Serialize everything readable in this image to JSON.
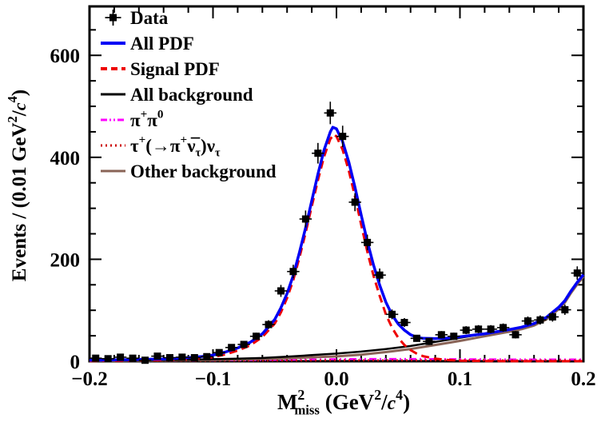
{
  "chart_data": {
    "type": "line",
    "title": "",
    "xlabel_runs": [
      {
        "t": "M"
      },
      {
        "t": "2",
        "s": "sup"
      },
      {
        "t": "miss",
        "s": "sub",
        "dx": -13
      },
      {
        "t": " (GeV"
      },
      {
        "t": "2",
        "s": "sup"
      },
      {
        "t": "/"
      },
      {
        "t": "c",
        "s": "it"
      },
      {
        "t": "4",
        "s": "sup"
      },
      {
        "t": ")"
      }
    ],
    "ylabel_runs": [
      {
        "t": "Events / (0.01 GeV"
      },
      {
        "t": "2",
        "s": "sup"
      },
      {
        "t": "/"
      },
      {
        "t": "c",
        "s": "it"
      },
      {
        "t": "4",
        "s": "sup"
      },
      {
        "t": ")"
      }
    ],
    "xlim": [
      -0.2,
      0.2
    ],
    "ylim": [
      0,
      696
    ],
    "xticks": {
      "major": [
        -0.2,
        -0.1,
        0,
        0.1,
        0.2
      ],
      "labels": [
        "−0.2",
        "−0.1",
        "0.0",
        "0.1",
        "0.2"
      ],
      "minor_step": 0.02
    },
    "yticks": {
      "major": [
        0,
        200,
        400,
        600
      ],
      "labels": [
        "0",
        "200",
        "400",
        "600"
      ],
      "minor_step": 50
    },
    "grid": false,
    "legend_position": "top-left",
    "data_points": {
      "name": "Data",
      "marker": "filled-square",
      "color": "#000000",
      "bin_width": 0.01,
      "x": [
        -0.195,
        -0.185,
        -0.175,
        -0.165,
        -0.155,
        -0.145,
        -0.135,
        -0.125,
        -0.115,
        -0.105,
        -0.095,
        -0.085,
        -0.075,
        -0.065,
        -0.055,
        -0.045,
        -0.035,
        -0.025,
        -0.015,
        -0.005,
        0.005,
        0.015,
        0.025,
        0.035,
        0.045,
        0.055,
        0.065,
        0.075,
        0.085,
        0.095,
        0.105,
        0.115,
        0.125,
        0.135,
        0.145,
        0.155,
        0.165,
        0.175,
        0.185,
        0.195
      ],
      "y": [
        6,
        5,
        8,
        6,
        2,
        10,
        7,
        8,
        7,
        9,
        17,
        27,
        33,
        49,
        72,
        138,
        176,
        279,
        408,
        487,
        441,
        312,
        233,
        169,
        92,
        76,
        45,
        39,
        52,
        49,
        61,
        63,
        63,
        66,
        52,
        79,
        81,
        87,
        101,
        173
      ]
    },
    "series": [
      {
        "key": "pipi0",
        "name": "pi+pi0",
        "color": "#ff00ff",
        "dash": "9 4 2 4 2 4",
        "width": 2.5,
        "points": [
          [
            -0.2,
            1
          ],
          [
            -0.15,
            1.3
          ],
          [
            -0.1,
            1.8
          ],
          [
            -0.05,
            2.8
          ],
          [
            -0.02,
            3.5
          ],
          [
            0,
            4
          ],
          [
            0.03,
            4.5
          ],
          [
            0.06,
            4.5
          ],
          [
            0.1,
            4
          ],
          [
            0.15,
            3.5
          ],
          [
            0.2,
            3.5
          ]
        ]
      },
      {
        "key": "tau",
        "name": "tau background",
        "color": "#cc0000",
        "dash": "2 4",
        "width": 2.5,
        "points": [
          [
            -0.2,
            0.8
          ],
          [
            -0.1,
            1.2
          ],
          [
            0,
            1.8
          ],
          [
            0.1,
            1.8
          ],
          [
            0.2,
            1.5
          ]
        ]
      },
      {
        "key": "other-bkg",
        "name": "Other background",
        "color": "#8a6457",
        "dash": "",
        "width": 3,
        "points": [
          [
            -0.2,
            0.8
          ],
          [
            -0.15,
            1.5
          ],
          [
            -0.1,
            2.5
          ],
          [
            -0.05,
            5
          ],
          [
            0,
            9.5
          ],
          [
            0.02,
            13
          ],
          [
            0.04,
            18
          ],
          [
            0.06,
            24
          ],
          [
            0.08,
            32
          ],
          [
            0.1,
            40
          ],
          [
            0.12,
            49
          ],
          [
            0.14,
            58
          ],
          [
            0.15,
            63
          ],
          [
            0.16,
            70
          ],
          [
            0.17,
            82
          ],
          [
            0.18,
            102
          ],
          [
            0.185,
            115
          ],
          [
            0.19,
            134
          ],
          [
            0.195,
            151
          ],
          [
            0.2,
            166
          ]
        ]
      },
      {
        "key": "all-bkg",
        "name": "All background",
        "color": "#000000",
        "dash": "",
        "width": 2.5,
        "points": [
          [
            -0.2,
            1.5
          ],
          [
            -0.15,
            2.5
          ],
          [
            -0.12,
            3.2
          ],
          [
            -0.1,
            4
          ],
          [
            -0.08,
            5
          ],
          [
            -0.06,
            6.5
          ],
          [
            -0.04,
            9
          ],
          [
            -0.02,
            12
          ],
          [
            0,
            15
          ],
          [
            0.02,
            19
          ],
          [
            0.04,
            24
          ],
          [
            0.06,
            30
          ],
          [
            0.08,
            38
          ],
          [
            0.1,
            46
          ],
          [
            0.12,
            54
          ],
          [
            0.14,
            62
          ],
          [
            0.15,
            67
          ],
          [
            0.16,
            73
          ],
          [
            0.17,
            85
          ],
          [
            0.18,
            105
          ],
          [
            0.185,
            118
          ],
          [
            0.19,
            137
          ],
          [
            0.195,
            154
          ],
          [
            0.2,
            169
          ]
        ]
      },
      {
        "key": "signal-pdf",
        "name": "Signal PDF",
        "color": "#ee0000",
        "dash": "10 6",
        "width": 3,
        "points": [
          [
            -0.2,
            0.5
          ],
          [
            -0.18,
            1
          ],
          [
            -0.16,
            1.6
          ],
          [
            -0.14,
            2.4
          ],
          [
            -0.12,
            3.8
          ],
          [
            -0.11,
            5.3
          ],
          [
            -0.1,
            8
          ],
          [
            -0.09,
            13.5
          ],
          [
            -0.08,
            21
          ],
          [
            -0.07,
            31
          ],
          [
            -0.06,
            47.5
          ],
          [
            -0.05,
            74
          ],
          [
            -0.045,
            96
          ],
          [
            -0.04,
            124
          ],
          [
            -0.035,
            159
          ],
          [
            -0.03,
            203
          ],
          [
            -0.025,
            252
          ],
          [
            -0.02,
            304
          ],
          [
            -0.015,
            355
          ],
          [
            -0.01,
            402
          ],
          [
            -0.005,
            436
          ],
          [
            -0.002,
            445
          ],
          [
            0,
            441
          ],
          [
            0.005,
            415
          ],
          [
            0.01,
            374
          ],
          [
            0.015,
            323
          ],
          [
            0.02,
            268
          ],
          [
            0.025,
            215
          ],
          [
            0.03,
            168
          ],
          [
            0.035,
            128
          ],
          [
            0.04,
            92
          ],
          [
            0.045,
            66
          ],
          [
            0.05,
            46
          ],
          [
            0.055,
            32
          ],
          [
            0.06,
            22
          ],
          [
            0.065,
            15
          ],
          [
            0.07,
            10
          ],
          [
            0.08,
            5
          ],
          [
            0.09,
            2.5
          ],
          [
            0.1,
            1.2
          ],
          [
            0.12,
            0.5
          ],
          [
            0.15,
            0.2
          ],
          [
            0.2,
            0.1
          ]
        ]
      },
      {
        "key": "all-pdf",
        "name": "All PDF",
        "color": "#0000f5",
        "dash": "",
        "width": 3.5,
        "points": [
          [
            -0.2,
            2
          ],
          [
            -0.18,
            2.6
          ],
          [
            -0.16,
            3.4
          ],
          [
            -0.14,
            4.5
          ],
          [
            -0.12,
            7
          ],
          [
            -0.11,
            9
          ],
          [
            -0.1,
            12
          ],
          [
            -0.09,
            18
          ],
          [
            -0.08,
            26
          ],
          [
            -0.07,
            37
          ],
          [
            -0.06,
            54
          ],
          [
            -0.05,
            82
          ],
          [
            -0.045,
            105
          ],
          [
            -0.04,
            133
          ],
          [
            -0.035,
            168
          ],
          [
            -0.03,
            213
          ],
          [
            -0.025,
            262
          ],
          [
            -0.02,
            315
          ],
          [
            -0.015,
            367
          ],
          [
            -0.01,
            415
          ],
          [
            -0.005,
            450
          ],
          [
            -0.003,
            459
          ],
          [
            0,
            456
          ],
          [
            0.005,
            431
          ],
          [
            0.01,
            391
          ],
          [
            0.015,
            341
          ],
          [
            0.02,
            287
          ],
          [
            0.025,
            235
          ],
          [
            0.03,
            189
          ],
          [
            0.035,
            149
          ],
          [
            0.04,
            116
          ],
          [
            0.045,
            91
          ],
          [
            0.05,
            73
          ],
          [
            0.055,
            61
          ],
          [
            0.06,
            52
          ],
          [
            0.065,
            47
          ],
          [
            0.07,
            45
          ],
          [
            0.08,
            44.5
          ],
          [
            0.09,
            45.5
          ],
          [
            0.1,
            48
          ],
          [
            0.11,
            51
          ],
          [
            0.12,
            54
          ],
          [
            0.13,
            58
          ],
          [
            0.14,
            62
          ],
          [
            0.15,
            67
          ],
          [
            0.16,
            74
          ],
          [
            0.17,
            86
          ],
          [
            0.18,
            106
          ],
          [
            0.185,
            119
          ],
          [
            0.19,
            138
          ],
          [
            0.195,
            155
          ],
          [
            0.2,
            170
          ]
        ]
      }
    ],
    "legend": [
      {
        "swatch": "marker",
        "color": "#000000",
        "dash": "",
        "width": 2,
        "label_runs": [
          {
            "t": "Data"
          }
        ]
      },
      {
        "swatch": "line",
        "color": "#0000f5",
        "dash": "",
        "width": 4,
        "label_runs": [
          {
            "t": "All PDF"
          }
        ]
      },
      {
        "swatch": "line",
        "color": "#ee0000",
        "dash": "8 5",
        "width": 4,
        "label_runs": [
          {
            "t": "Signal PDF"
          }
        ]
      },
      {
        "swatch": "line",
        "color": "#000000",
        "dash": "",
        "width": 3,
        "label_runs": [
          {
            "t": "All background"
          }
        ]
      },
      {
        "swatch": "line",
        "color": "#ff00ff",
        "dash": "8 3 2 3 2 3",
        "width": 3,
        "label_runs": [
          {
            "t": "π"
          },
          {
            "t": "+",
            "s": "sup"
          },
          {
            "t": "π"
          },
          {
            "t": "0",
            "s": "sup"
          }
        ]
      },
      {
        "swatch": "line",
        "color": "#cc0000",
        "dash": "2 4",
        "width": 3,
        "label_runs": [
          {
            "t": "τ"
          },
          {
            "t": "+",
            "s": "sup"
          },
          {
            "t": "(→π"
          },
          {
            "t": "+",
            "s": "sup"
          },
          {
            "t": "ν̅"
          },
          {
            "t": "τ",
            "s": "sub"
          },
          {
            "t": ")ν"
          },
          {
            "t": "τ",
            "s": "sub"
          }
        ]
      },
      {
        "swatch": "line",
        "color": "#8a6457",
        "dash": "",
        "width": 3,
        "label_runs": [
          {
            "t": "Other background"
          }
        ]
      }
    ]
  },
  "colors": {
    "frame": "#000000",
    "background": "#ffffff",
    "all_pdf": "#0000f5",
    "signal_pdf": "#ee0000",
    "all_background": "#000000",
    "pipi0": "#ff00ff",
    "tau": "#cc0000",
    "other_background": "#8a6457"
  }
}
